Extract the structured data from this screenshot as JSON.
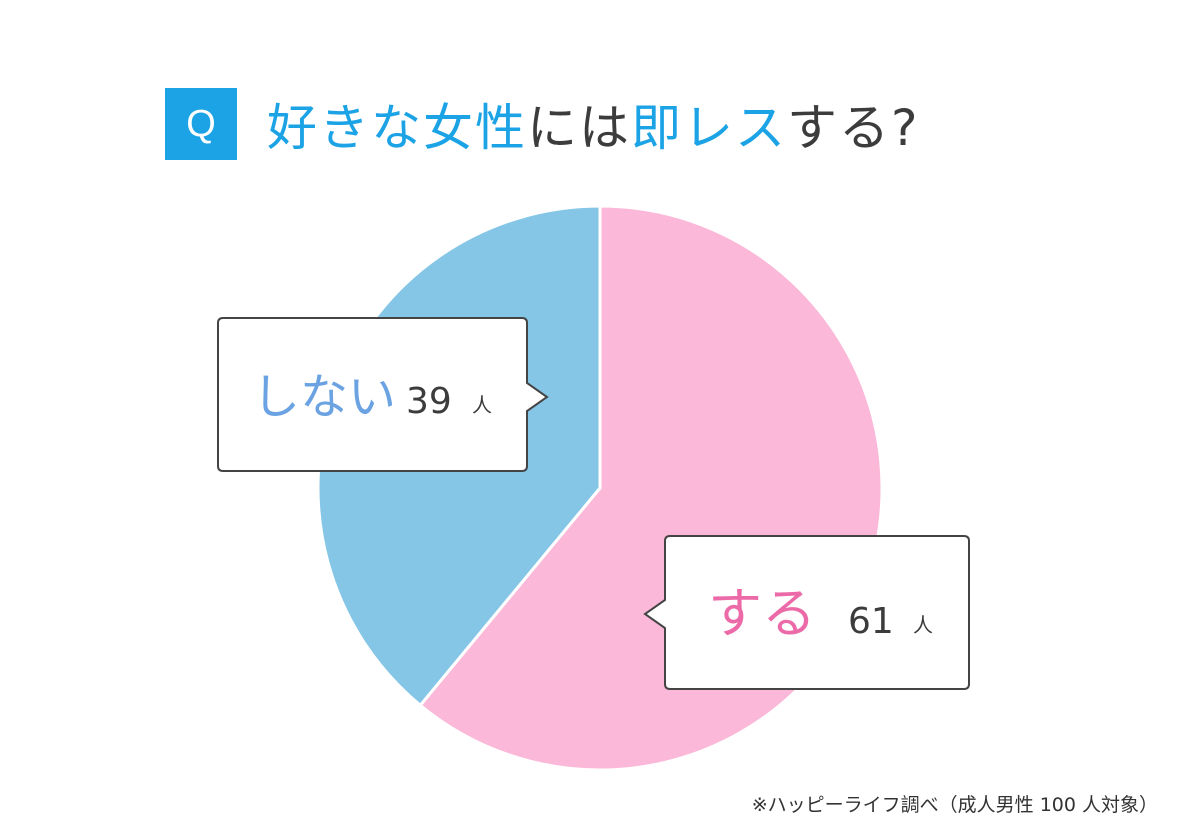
{
  "title": {
    "badge": "Q",
    "parts": [
      {
        "text": "好きな女性",
        "highlight": true
      },
      {
        "text": "には",
        "highlight": false
      },
      {
        "text": "即レス",
        "highlight": true
      },
      {
        "text": "する?",
        "highlight": false
      }
    ]
  },
  "chart_data": {
    "type": "pie",
    "unit": "人",
    "slices": [
      {
        "label": "する",
        "value": 61,
        "color": "#fbb8d8",
        "label_color": "#ec6aa8"
      },
      {
        "label": "しない",
        "value": 39,
        "color": "#85c6e7",
        "label_color": "#6aa2e2"
      }
    ],
    "start": "12 o'clock, clockwise"
  },
  "colors": {
    "accent": "#1ba3e6",
    "text": "#3c3c3c"
  },
  "footnote": "※ハッピーライフ調べ（成人男性 100 人対象）"
}
